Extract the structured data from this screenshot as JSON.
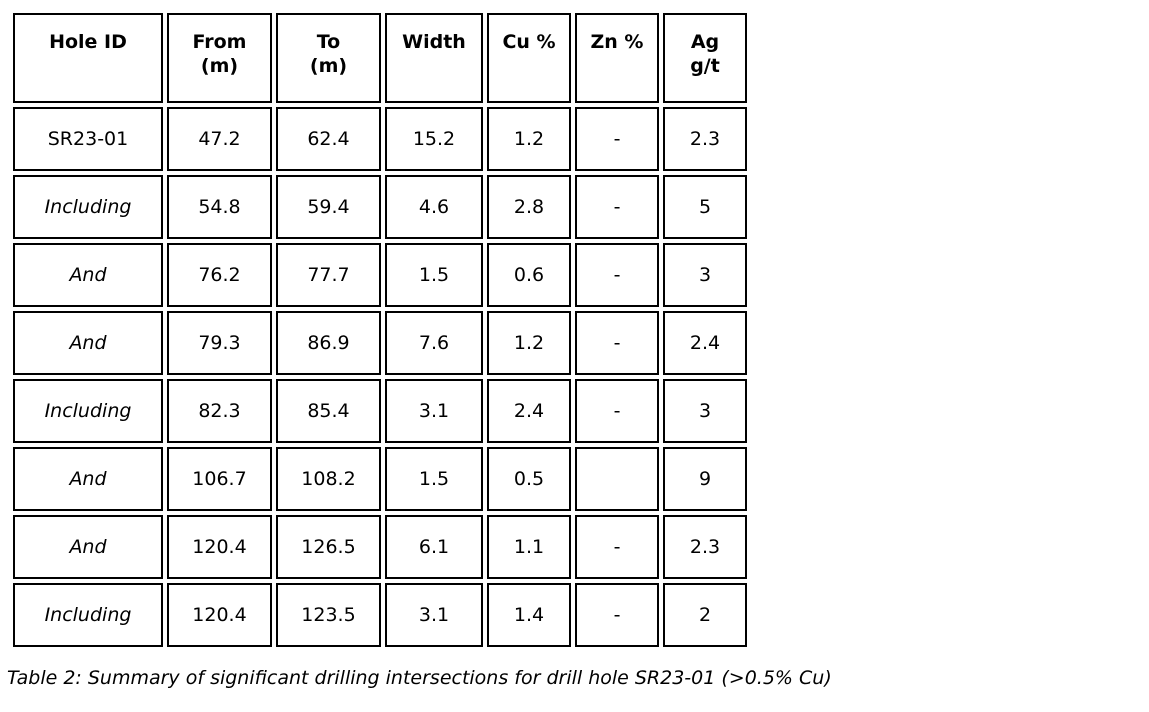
{
  "table": {
    "columns": [
      {
        "key": "label",
        "label": "Hole ID"
      },
      {
        "key": "from",
        "label": "From\n(m)"
      },
      {
        "key": "to",
        "label": "To\n(m)"
      },
      {
        "key": "width",
        "label": "Width"
      },
      {
        "key": "cu",
        "label": "Cu %"
      },
      {
        "key": "zn",
        "label": "Zn %"
      },
      {
        "key": "ag",
        "label": "Ag\ng/t"
      }
    ],
    "rows": [
      {
        "label": "SR23-01",
        "label_style": "bold",
        "interval_bold": true,
        "from": "47.2",
        "to": "62.4",
        "width": "15.2",
        "cu": "1.2",
        "zn": "-",
        "ag": "2.3"
      },
      {
        "label": "Including",
        "label_style": "italic",
        "interval_bold": false,
        "from": "54.8",
        "to": "59.4",
        "width": "4.6",
        "cu": "2.8",
        "zn": "-",
        "ag": "5"
      },
      {
        "label": "And",
        "label_style": "italic",
        "interval_bold": true,
        "from": "76.2",
        "to": "77.7",
        "width": "1.5",
        "cu": "0.6",
        "zn": "-",
        "ag": "3"
      },
      {
        "label": "And",
        "label_style": "italic",
        "interval_bold": true,
        "from": "79.3",
        "to": "86.9",
        "width": "7.6",
        "cu": "1.2",
        "zn": "-",
        "ag": "2.4"
      },
      {
        "label": "Including",
        "label_style": "italic",
        "interval_bold": false,
        "from": "82.3",
        "to": "85.4",
        "width": "3.1",
        "cu": "2.4",
        "zn": "-",
        "ag": "3"
      },
      {
        "label": "And",
        "label_style": "italic",
        "interval_bold": true,
        "from": "106.7",
        "to": "108.2",
        "width": "1.5",
        "cu": "0.5",
        "zn": "",
        "ag": "9"
      },
      {
        "label": "And",
        "label_style": "italic",
        "interval_bold": true,
        "from": "120.4",
        "to": "126.5",
        "width": "6.1",
        "cu": "1.1",
        "zn": "-",
        "ag": "2.3"
      },
      {
        "label": "Including",
        "label_style": "italic",
        "interval_bold": false,
        "from": "120.4",
        "to": "123.5",
        "width": "3.1",
        "cu": "1.4",
        "zn": "-",
        "ag": "2"
      }
    ]
  },
  "caption": "Table 2: Summary of significant drilling intersections for drill hole SR23-01 (>0.5% Cu)",
  "colors": {
    "border": "#000000",
    "text": "#000000",
    "background": "#ffffff"
  }
}
